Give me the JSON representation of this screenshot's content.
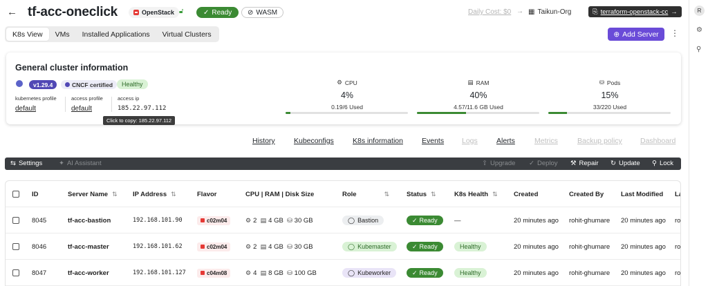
{
  "header": {
    "title": "tf-acc-oneclick",
    "provider": "OpenStack",
    "status": "Ready",
    "runtime": "WASM",
    "daily_cost": "Daily Cost: $0",
    "org": "Taikun-Org",
    "project_link": "terraform-openstack-cc"
  },
  "tabs": [
    "K8s View",
    "VMs",
    "Installed Applications",
    "Virtual Clusters"
  ],
  "actions": {
    "add_server": "Add Server"
  },
  "cluster": {
    "title": "General cluster information",
    "version": "v1.29.4",
    "cncf": "CNCF certified",
    "health": "Healthy",
    "kubernetes_profile_label": "kubernetes profile",
    "kubernetes_profile": "default",
    "access_profile_label": "access profile",
    "access_profile": "default",
    "access_ip_label": "access ip",
    "access_ip": "185.22.97.112",
    "tooltip": "Click to copy: 185.22.97.112",
    "metrics": [
      {
        "name": "CPU",
        "percent": "4%",
        "used": "0.19/6 Used",
        "fill": 0.04
      },
      {
        "name": "RAM",
        "percent": "40%",
        "used": "4.57/11.6 GB Used",
        "fill": 0.4
      },
      {
        "name": "Pods",
        "percent": "15%",
        "used": "33/220 Used",
        "fill": 0.15
      }
    ]
  },
  "subnav": [
    {
      "label": "History",
      "enabled": true
    },
    {
      "label": "Kubeconfigs",
      "enabled": true
    },
    {
      "label": "K8s information",
      "enabled": true
    },
    {
      "label": "Events",
      "enabled": true
    },
    {
      "label": "Logs",
      "enabled": false
    },
    {
      "label": "Alerts",
      "enabled": true
    },
    {
      "label": "Metrics",
      "enabled": false
    },
    {
      "label": "Backup policy",
      "enabled": false
    },
    {
      "label": "Dashboard",
      "enabled": false
    }
  ],
  "toolbar": {
    "settings": "Settings",
    "ai_assistant": "AI Assistant",
    "upgrade": "Upgrade",
    "deploy": "Deploy",
    "repair": "Repair",
    "update": "Update",
    "lock": "Lock"
  },
  "table": {
    "columns": {
      "id": "ID",
      "server_name": "Server Name",
      "ip": "IP Address",
      "flavor": "Flavor",
      "cpu": "CPU",
      "ram": "RAM",
      "disk": "Disk Size",
      "role": "Role",
      "status": "Status",
      "k8s_health": "K8s Health",
      "created": "Created",
      "created_by": "Created By",
      "last_modified": "Last Modified",
      "last_col": "La"
    },
    "rows": [
      {
        "id": "8045",
        "name": "tf-acc-bastion",
        "ip": "192.168.101.90",
        "flavor": "c02m04",
        "cpu": "2",
        "ram": "4 GB",
        "disk": "30 GB",
        "role": "Bastion",
        "status": "Ready",
        "health": "—",
        "created": "20 minutes ago",
        "created_by": "rohit-ghumare",
        "last_modified": "20 minutes ago",
        "last": "ro"
      },
      {
        "id": "8046",
        "name": "tf-acc-master",
        "ip": "192.168.101.62",
        "flavor": "c02m04",
        "cpu": "2",
        "ram": "4 GB",
        "disk": "30 GB",
        "role": "Kubemaster",
        "status": "Ready",
        "health": "Healthy",
        "created": "20 minutes ago",
        "created_by": "rohit-ghumare",
        "last_modified": "20 minutes ago",
        "last": "ro"
      },
      {
        "id": "8047",
        "name": "tf-acc-worker",
        "ip": "192.168.101.127",
        "flavor": "c04m08",
        "cpu": "4",
        "ram": "8 GB",
        "disk": "100 GB",
        "role": "Kubeworker",
        "status": "Ready",
        "health": "Healthy",
        "created": "20 minutes ago",
        "created_by": "rohit-ghumare",
        "last_modified": "20 minutes ago",
        "last": "ro"
      }
    ]
  },
  "user": {
    "initial": "R"
  }
}
